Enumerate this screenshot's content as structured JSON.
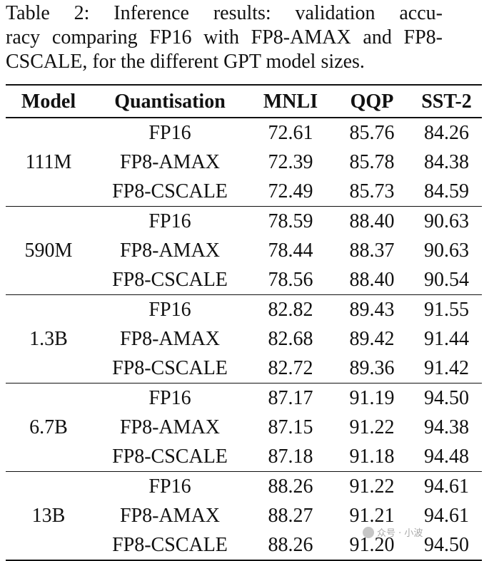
{
  "caption": {
    "line1": "Table 2: Inference results: validation accu-",
    "line2": "racy comparing FP16 with FP8-AMAX and FP8-",
    "line3": "CSCALE, for the different GPT model sizes."
  },
  "table": {
    "headers": [
      "Model",
      "Quantisation",
      "MNLI",
      "QQP",
      "SST-2"
    ],
    "groups": [
      {
        "model": "111M",
        "rows": [
          [
            "FP16",
            "72.61",
            "85.76",
            "84.26"
          ],
          [
            "FP8-AMAX",
            "72.39",
            "85.78",
            "84.38"
          ],
          [
            "FP8-CSCALE",
            "72.49",
            "85.73",
            "84.59"
          ]
        ]
      },
      {
        "model": "590M",
        "rows": [
          [
            "FP16",
            "78.59",
            "88.40",
            "90.63"
          ],
          [
            "FP8-AMAX",
            "78.44",
            "88.37",
            "90.63"
          ],
          [
            "FP8-CSCALE",
            "78.56",
            "88.40",
            "90.54"
          ]
        ]
      },
      {
        "model": "1.3B",
        "rows": [
          [
            "FP16",
            "82.82",
            "89.43",
            "91.55"
          ],
          [
            "FP8-AMAX",
            "82.68",
            "89.42",
            "91.44"
          ],
          [
            "FP8-CSCALE",
            "82.72",
            "89.36",
            "91.42"
          ]
        ]
      },
      {
        "model": "6.7B",
        "rows": [
          [
            "FP16",
            "87.17",
            "91.19",
            "94.50"
          ],
          [
            "FP8-AMAX",
            "87.15",
            "91.22",
            "94.38"
          ],
          [
            "FP8-CSCALE",
            "87.18",
            "91.18",
            "94.48"
          ]
        ]
      },
      {
        "model": "13B",
        "rows": [
          [
            "FP16",
            "88.26",
            "91.22",
            "94.61"
          ],
          [
            "FP8-AMAX",
            "88.27",
            "91.21",
            "94.61"
          ],
          [
            "FP8-CSCALE",
            "88.26",
            "91.20",
            "94.50"
          ]
        ]
      }
    ]
  },
  "watermark": {
    "text": "众号 · 小波"
  }
}
